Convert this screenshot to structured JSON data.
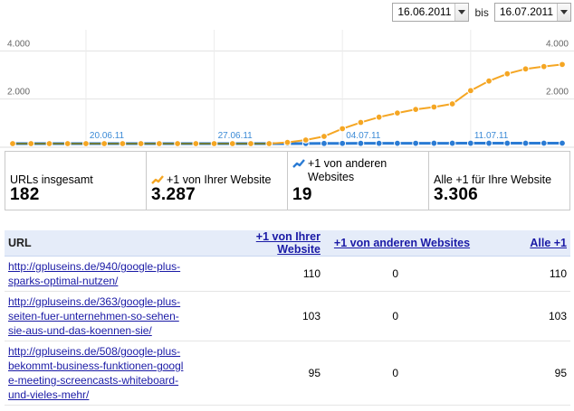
{
  "date_range": {
    "start": "16.06.2011",
    "separator": "bis",
    "end": "16.07.2011"
  },
  "chart_data": {
    "type": "line",
    "y_ticks": [
      "4.000",
      "2.000"
    ],
    "ylim": [
      0,
      4500
    ],
    "date_labels": [
      "20.06.11",
      "27.06.11",
      "04.07.11",
      "11.07.11"
    ],
    "x": [
      "16.06",
      "17.06",
      "18.06",
      "19.06",
      "20.06",
      "21.06",
      "22.06",
      "23.06",
      "24.06",
      "25.06",
      "26.06",
      "27.06",
      "28.06",
      "29.06",
      "30.06",
      "01.07",
      "02.07",
      "03.07",
      "04.07",
      "05.07",
      "06.07",
      "07.07",
      "08.07",
      "09.07",
      "10.07",
      "11.07",
      "12.07",
      "13.07",
      "14.07",
      "15.07",
      "16.07"
    ],
    "series": [
      {
        "name": "+1 von Ihrer Website",
        "color": "#f5a623",
        "values": [
          0,
          0,
          0,
          0,
          0,
          0,
          0,
          0,
          0,
          0,
          0,
          0,
          0,
          0,
          0,
          50,
          150,
          300,
          620,
          880,
          1100,
          1270,
          1420,
          1520,
          1650,
          2200,
          2600,
          2900,
          3100,
          3200,
          3287
        ]
      },
      {
        "name": "+1 von anderen Websites",
        "color": "#2a7bd4",
        "values": [
          0,
          0,
          0,
          0,
          0,
          0,
          0,
          0,
          0,
          0,
          0,
          0,
          0,
          0,
          0,
          0,
          5,
          8,
          10,
          12,
          13,
          14,
          15,
          16,
          16,
          17,
          17,
          18,
          18,
          19,
          19
        ]
      }
    ]
  },
  "summary": {
    "total": {
      "label": "URLs insgesamt",
      "value": "182"
    },
    "own": {
      "label": "+1 von Ihrer Website",
      "value": "3.287",
      "icon": "orange-trend-icon"
    },
    "other": {
      "label": "+1 von anderen Websites",
      "value": "19",
      "icon": "blue-trend-icon"
    },
    "all": {
      "label": "Alle +1 für Ihre Website",
      "value": "3.306"
    }
  },
  "table": {
    "headers": {
      "url": "URL",
      "own": "+1 von Ihrer Website",
      "other": "+1 von anderen Websites",
      "all": "Alle +1"
    },
    "rows": [
      {
        "url_lines": [
          "http://gpluseins.de/940/google-plus-",
          "sparks-optimal-nutzen/"
        ],
        "own": "110",
        "other": "0",
        "all": "110"
      },
      {
        "url_lines": [
          "http://gpluseins.de/363/google-plus-",
          "seiten-fuer-unternehmen-so-sehen-",
          "sie-aus-und-das-koennen-sie/"
        ],
        "own": "103",
        "other": "0",
        "all": "103"
      },
      {
        "url_lines": [
          "http://gpluseins.de/508/google-plus-",
          "bekommt-business-funktionen-googl",
          "e-meeting-screencasts-whiteboard-",
          "und-vieles-mehr/"
        ],
        "own": "95",
        "other": "0",
        "all": "95"
      }
    ]
  }
}
